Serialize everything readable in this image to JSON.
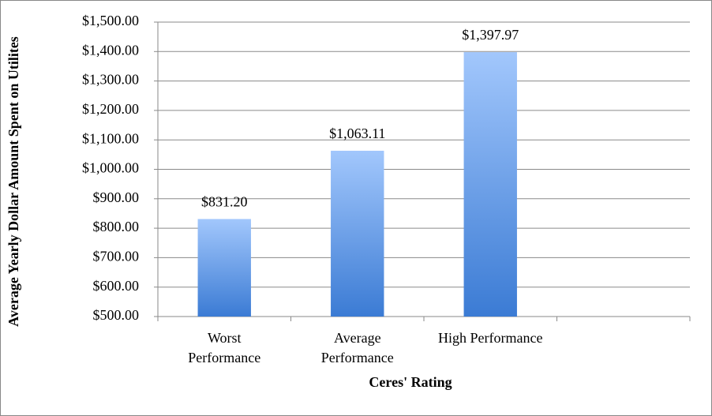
{
  "chart_data": {
    "type": "bar",
    "x_label": "Ceres' Rating",
    "y_label": "Average Yearly Dollar Amount Spent on Utilites",
    "categories": [
      "Worst Performance",
      "Average Performance",
      "High Performance",
      null
    ],
    "values": [
      831.2,
      1063.11,
      1397.97,
      null
    ],
    "value_labels": [
      "$831.20",
      "$1,063.11",
      "$1,397.97",
      null
    ],
    "color": [
      "#a2c7fc",
      "#3b7bd4"
    ],
    "ylim": [
      500,
      1500
    ],
    "yticks": [
      {
        "value": 500,
        "label": "$500.00"
      },
      {
        "value": 600,
        "label": "$600.00"
      },
      {
        "value": 700,
        "label": "$700.00"
      },
      {
        "value": 800,
        "label": "$800.00"
      },
      {
        "value": 900,
        "label": "$900.00"
      },
      {
        "value": 1000,
        "label": "$1,000.00"
      },
      {
        "value": 1100,
        "label": "$1,100.00"
      },
      {
        "value": 1200,
        "label": "$1,200.00"
      },
      {
        "value": 1300,
        "label": "$1,300.00"
      },
      {
        "value": 1400,
        "label": "$1,400.00"
      },
      {
        "value": 1500,
        "label": "$1,500.00"
      }
    ],
    "grid": true
  }
}
